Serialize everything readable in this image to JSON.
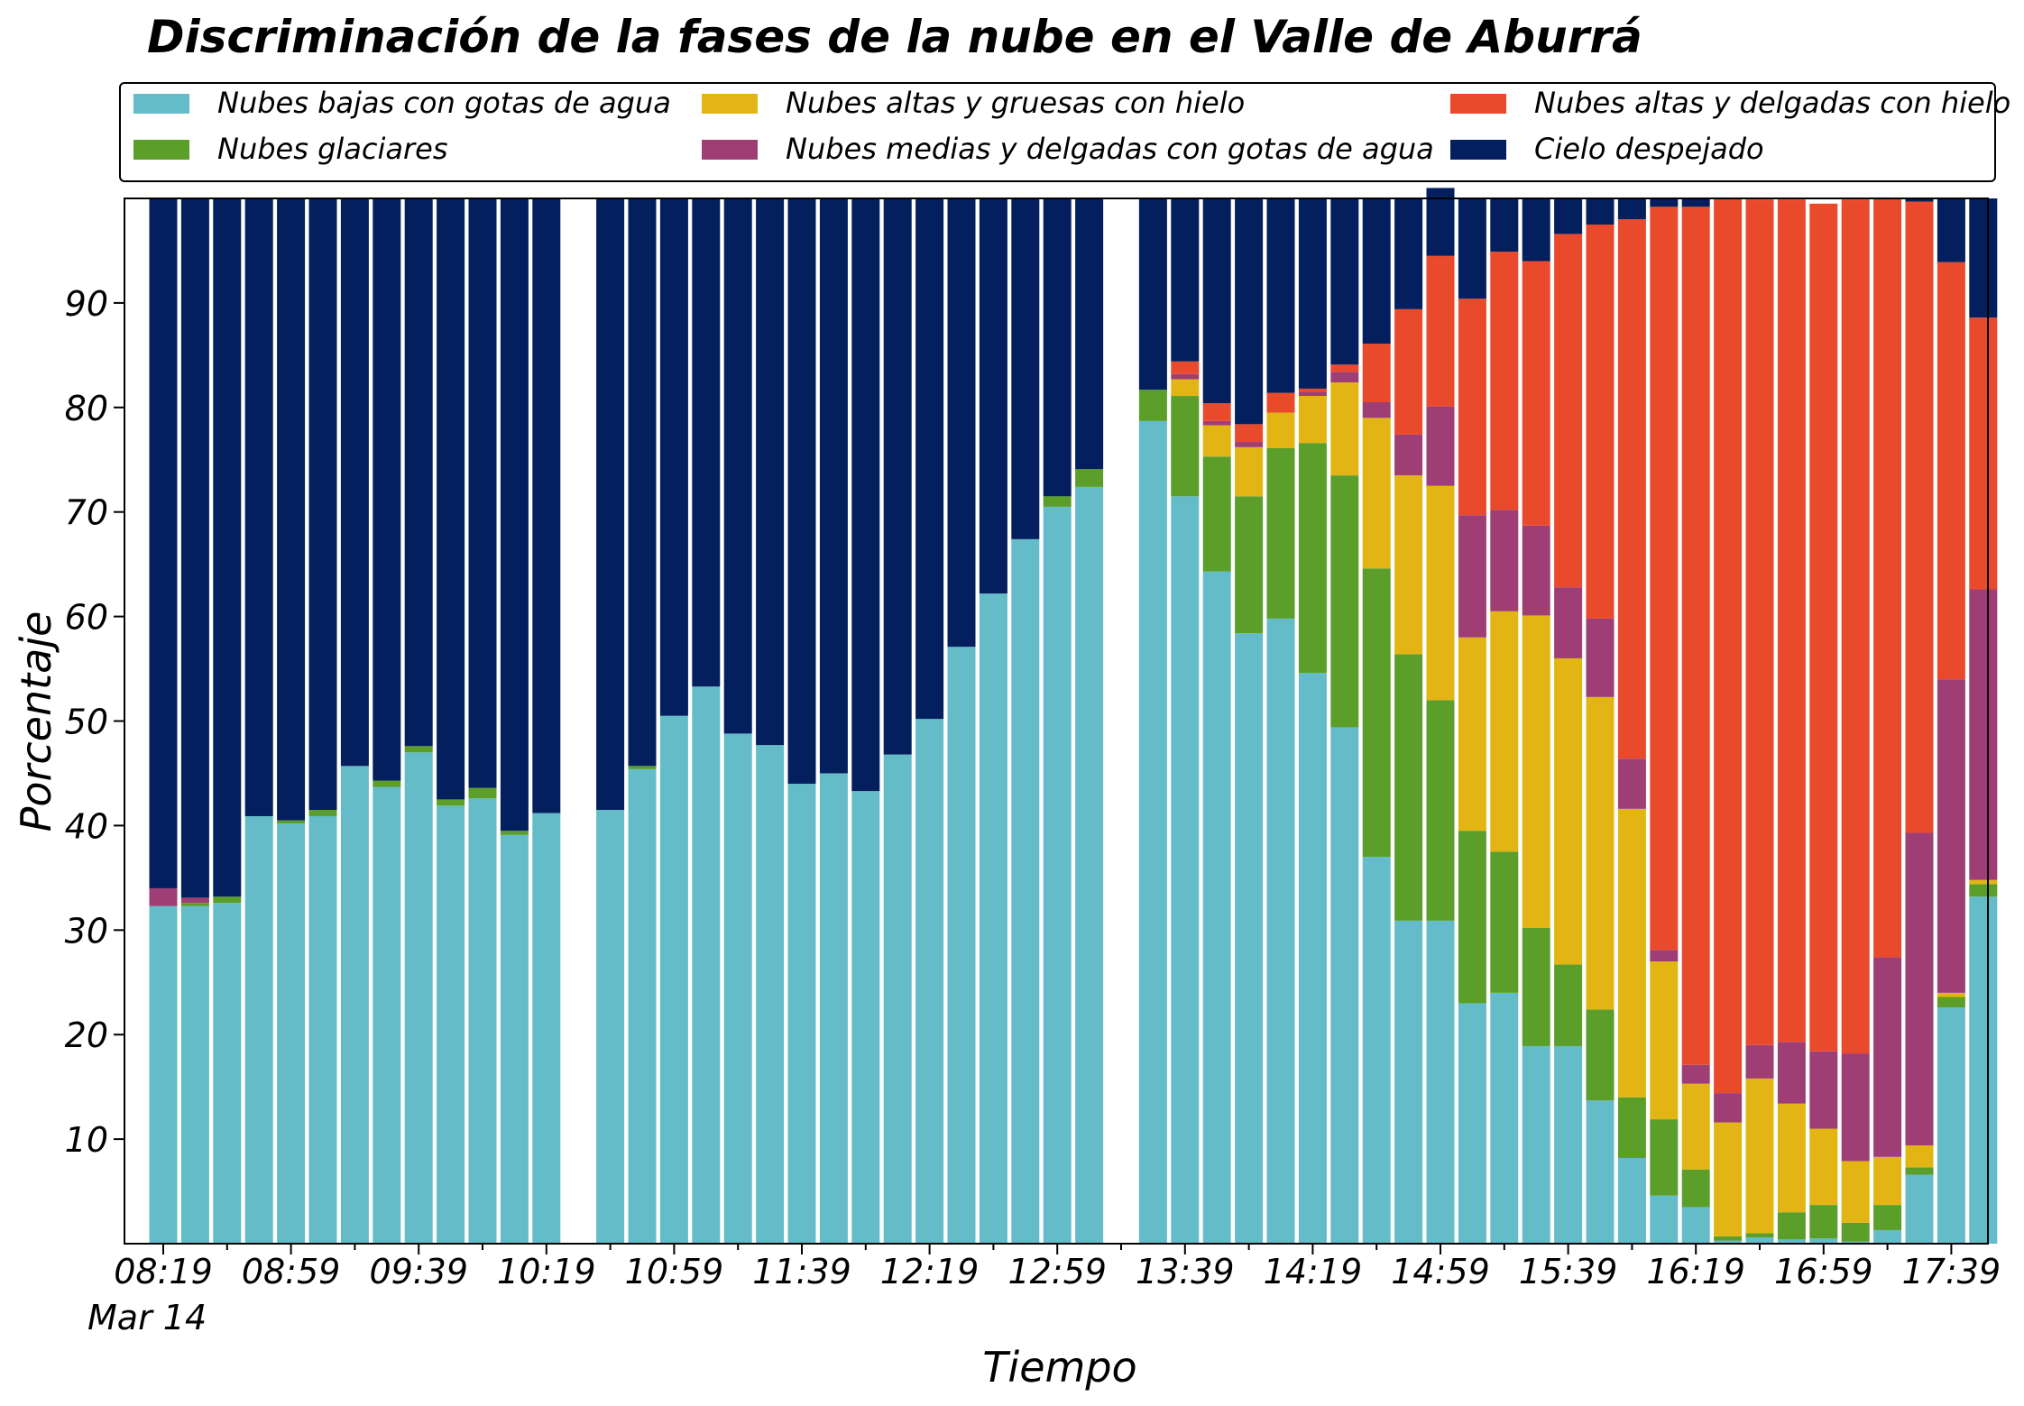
{
  "chart_data": {
    "type": "bar",
    "stacked": true,
    "title": "Discriminación de la fases de la nube en el Valle de Aburrá",
    "xlabel": "Tiempo",
    "ylabel": "Porcentaje",
    "ylim": [
      0,
      100
    ],
    "yticks": [
      10,
      20,
      30,
      40,
      50,
      60,
      70,
      80,
      90
    ],
    "xticklabels": [
      "08:19",
      "08:59",
      "09:39",
      "10:19",
      "10:59",
      "11:39",
      "12:19",
      "12:59",
      "13:39",
      "14:19",
      "14:59",
      "15:39",
      "16:19",
      "16:59",
      "17:39"
    ],
    "date_label": "Mar 14",
    "grid": false,
    "legend_position": "top",
    "categories": [
      "08:19",
      "08:29",
      "08:39",
      "08:49",
      "08:59",
      "09:09",
      "09:19",
      "09:29",
      "09:39",
      "09:49",
      "09:59",
      "10:09",
      "10:19",
      "10:29",
      "10:39",
      "10:49",
      "10:59",
      "11:09",
      "11:19",
      "11:29",
      "11:39",
      "11:49",
      "11:59",
      "12:09",
      "12:19",
      "12:29",
      "12:39",
      "12:49",
      "12:59",
      "13:09",
      "13:19",
      "13:29",
      "13:39",
      "13:49",
      "13:59",
      "14:09",
      "14:19",
      "14:29",
      "14:39",
      "14:49",
      "14:59",
      "15:09",
      "15:19",
      "15:29",
      "15:39",
      "15:49",
      "15:59",
      "16:09",
      "16:19",
      "16:29",
      "16:39",
      "16:49",
      "16:59",
      "17:09",
      "17:19",
      "17:29",
      "17:39",
      "17:49"
    ],
    "series": [
      {
        "name": "Nubes bajas con gotas de agua",
        "color": "#64bcc9",
        "values": [
          32.3,
          32.3,
          32.6,
          40.9,
          40.2,
          40.9,
          45.7,
          43.7,
          47.0,
          41.9,
          42.6,
          39.1,
          41.2,
          null,
          41.5,
          45.4,
          50.5,
          53.3,
          48.8,
          47.7,
          44.0,
          45.0,
          43.3,
          46.8,
          50.2,
          57.1,
          62.2,
          67.4,
          70.5,
          72.4,
          null,
          78.7,
          71.5,
          64.3,
          58.4,
          59.8,
          54.6,
          49.4,
          37.0,
          30.9,
          30.9,
          23.0,
          24.0,
          18.9,
          18.9,
          13.7,
          8.2,
          4.6,
          3.5,
          0.3,
          0.6,
          0.4,
          0.5,
          0.2,
          1.3,
          6.6,
          22.6,
          33.2
        ]
      },
      {
        "name": "Nubes glaciares",
        "color": "#5b9e29",
        "values": [
          0,
          0.3,
          0.6,
          0,
          0.3,
          0.6,
          0,
          0.6,
          0.6,
          0.6,
          1.0,
          0.4,
          0,
          null,
          0,
          0.3,
          0,
          0,
          0,
          0,
          0,
          0,
          0,
          0,
          0,
          0,
          0,
          0,
          1.0,
          1.7,
          null,
          3.0,
          9.6,
          11.0,
          13.1,
          16.3,
          22.0,
          24.1,
          27.6,
          25.5,
          21.1,
          16.5,
          13.5,
          11.3,
          7.8,
          8.7,
          5.8,
          7.3,
          3.6,
          0.4,
          0.4,
          2.6,
          3.2,
          1.8,
          2.4,
          0.7,
          1.0,
          1.2
        ]
      },
      {
        "name": "Nubes altas y gruesas con hielo",
        "color": "#e2b515",
        "values": [
          0,
          0,
          0,
          0,
          0,
          0,
          0,
          0,
          0,
          0,
          0,
          0,
          0,
          null,
          0,
          0,
          0,
          0,
          0,
          0,
          0,
          0,
          0,
          0,
          0,
          0,
          0,
          0,
          0,
          0,
          null,
          0,
          1.6,
          3.0,
          4.7,
          3.4,
          4.5,
          8.9,
          14.4,
          17.1,
          20.5,
          18.5,
          23.0,
          29.9,
          29.3,
          29.9,
          27.6,
          15.1,
          8.2,
          10.9,
          14.8,
          10.4,
          7.3,
          5.9,
          4.6,
          2.1,
          0.4,
          0.4
        ]
      },
      {
        "name": "Nubes medias y delgadas con gotas de agua",
        "color": "#9e3e75",
        "values": [
          1.7,
          0.5,
          0,
          0,
          0,
          0,
          0,
          0,
          0,
          0,
          0,
          0,
          0,
          null,
          0,
          0,
          0,
          0,
          0,
          0,
          0,
          0,
          0,
          0,
          0,
          0,
          0,
          0,
          0,
          0,
          null,
          0,
          0.5,
          0.4,
          0.5,
          0,
          0.4,
          1.0,
          1.5,
          3.9,
          7.6,
          11.7,
          9.7,
          8.6,
          6.8,
          7.5,
          4.8,
          1.1,
          1.8,
          2.8,
          3.2,
          5.9,
          7.4,
          10.3,
          19.1,
          29.9,
          30.0,
          27.8
        ]
      },
      {
        "name": "Nubes altas y delgadas con hielo",
        "color": "#ea4a2c",
        "values": [
          0,
          0,
          0,
          0,
          0,
          0,
          0,
          0,
          0,
          0,
          0,
          0,
          0,
          null,
          0,
          0,
          0,
          0,
          0,
          0,
          0,
          0,
          0,
          0,
          0,
          0,
          0,
          0,
          0,
          0,
          null,
          0,
          1.2,
          1.7,
          1.7,
          1.9,
          0.3,
          0.7,
          5.6,
          12.0,
          14.4,
          20.7,
          24.7,
          25.3,
          33.8,
          37.7,
          51.6,
          71.1,
          82.1,
          85.6,
          80.9,
          80.6,
          81.1,
          81.7,
          72.6,
          60.4,
          39.9,
          26.0
        ]
      },
      {
        "name": "Cielo despejado",
        "color": "#041f5d",
        "values": [
          66.0,
          66.9,
          66.8,
          59.1,
          59.5,
          58.5,
          54.3,
          55.7,
          52.4,
          57.5,
          56.4,
          60.5,
          58.8,
          null,
          58.5,
          54.3,
          49.5,
          46.7,
          51.2,
          52.3,
          56.0,
          55.0,
          56.7,
          53.2,
          49.8,
          42.9,
          37.8,
          32.6,
          28.5,
          25.9,
          null,
          18.3,
          15.6,
          19.6,
          21.6,
          18.6,
          18.2,
          15.9,
          13.9,
          10.6,
          6.5,
          9.6,
          5.1,
          6.0,
          3.4,
          2.5,
          2.0,
          0.8,
          0.8,
          0,
          0,
          0,
          0,
          0,
          0,
          0.3,
          6.1,
          11.4
        ]
      }
    ]
  }
}
